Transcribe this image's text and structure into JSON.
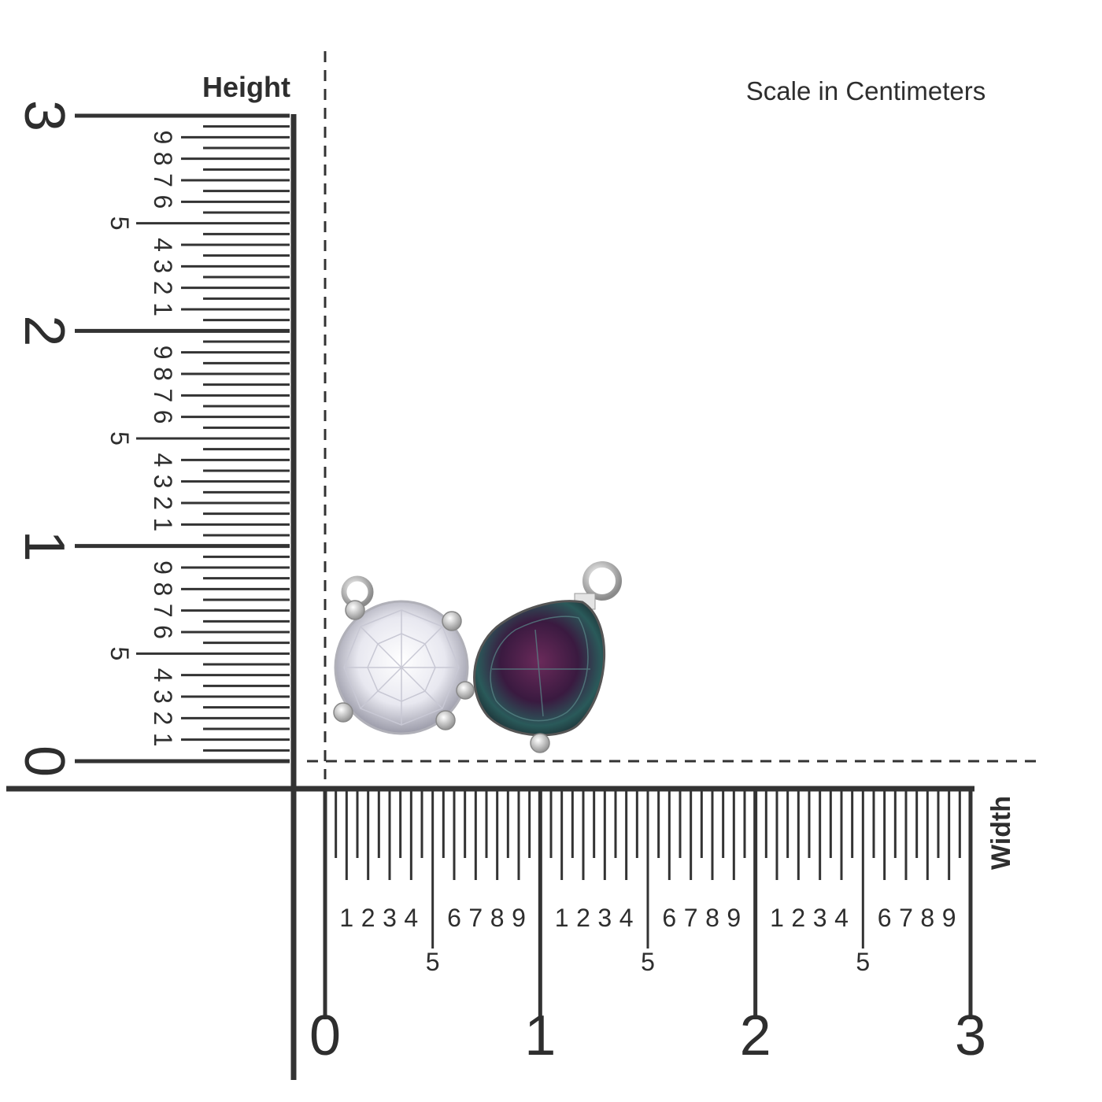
{
  "header": {
    "scale_note": "Scale in Centimeters"
  },
  "height_ruler": {
    "label": "Height",
    "major_labels": [
      "0",
      "1",
      "2",
      "3"
    ],
    "minor_labels": [
      "1",
      "2",
      "3",
      "4",
      "5",
      "6",
      "7",
      "8",
      "9"
    ]
  },
  "width_ruler": {
    "label": "Width",
    "major_labels": [
      "0",
      "1",
      "2",
      "3"
    ],
    "minor_labels": [
      "1",
      "2",
      "3",
      "4",
      "5",
      "6",
      "7",
      "8",
      "9"
    ]
  }
}
